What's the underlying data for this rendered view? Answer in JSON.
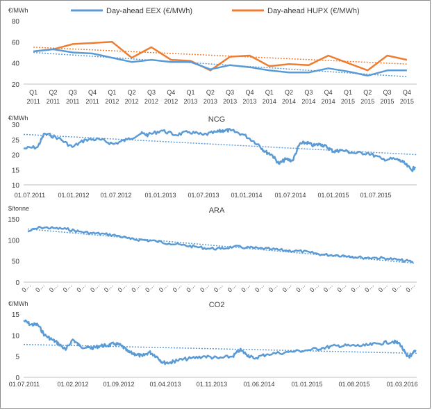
{
  "colors": {
    "eex": "#5b9bd5",
    "hupx": "#ed7d31",
    "axis": "#bfbfbf",
    "text": "#3a3a3a"
  },
  "chart_data": [
    {
      "type": "line",
      "title": "",
      "ylabel": "€/MWh",
      "ylim": [
        20,
        80
      ],
      "yticks": [
        20,
        40,
        60,
        80
      ],
      "grid": false,
      "legend": "top",
      "categories": [
        [
          "Q1",
          "2011"
        ],
        [
          "Q2",
          "2011"
        ],
        [
          "Q3",
          "2011"
        ],
        [
          "Q4",
          "2011"
        ],
        [
          "Q1",
          "2012"
        ],
        [
          "Q2",
          "2012"
        ],
        [
          "Q3",
          "2012"
        ],
        [
          "Q4",
          "2012"
        ],
        [
          "Q1",
          "2013"
        ],
        [
          "Q2",
          "2013"
        ],
        [
          "Q3",
          "2013"
        ],
        [
          "Q4",
          "2013"
        ],
        [
          "Q1",
          "2014"
        ],
        [
          "Q2",
          "2014"
        ],
        [
          "Q3",
          "2014"
        ],
        [
          "Q4",
          "2014"
        ],
        [
          "Q1",
          "2015"
        ],
        [
          "Q2",
          "2015"
        ],
        [
          "Q3",
          "2015"
        ],
        [
          "Q4",
          "2015"
        ]
      ],
      "series": [
        {
          "name": "Day-ahead EEX (€/MWh)",
          "color": "#5b9bd5",
          "values": [
            51,
            53,
            50,
            49,
            45,
            41,
            43,
            41,
            41,
            34,
            38,
            36,
            33,
            31,
            31,
            35,
            32,
            28,
            33,
            33
          ],
          "trend": [
            50,
            27
          ]
        },
        {
          "name": "Day-ahead HUPX (€/MWh)",
          "color": "#ed7d31",
          "values": [
            51,
            53,
            58,
            59,
            60,
            45,
            55,
            43,
            42,
            33,
            46,
            47,
            37,
            39,
            38,
            47,
            40,
            33,
            47,
            43
          ],
          "trend": [
            55,
            39
          ]
        }
      ]
    },
    {
      "type": "line",
      "title": "NCG",
      "ylabel": "€/MWh",
      "ylim": [
        10,
        30
      ],
      "yticks": [
        10,
        15,
        20,
        25,
        30
      ],
      "xlim": [
        "2011-07-01",
        "2016-04-01"
      ],
      "xticks": [
        "01.07.2011",
        "01.01.2012",
        "01.07.2012",
        "01.01.2013",
        "01.07.2013",
        "01.01.2014",
        "01.07.2014",
        "01.01.2015",
        "01.07.2015"
      ],
      "trend": [
        26.7,
        20.0
      ],
      "series": [
        {
          "name": "",
          "color": "#5b9bd5",
          "dates": [
            "2011-07-01",
            "2011-09-01",
            "2011-10-01",
            "2011-12-01",
            "2012-02-01",
            "2012-04-01",
            "2012-06-01",
            "2012-08-01",
            "2012-10-01",
            "2012-12-01",
            "2013-01-01",
            "2013-03-01",
            "2013-05-01",
            "2013-07-01",
            "2013-09-01",
            "2013-11-01",
            "2013-12-01",
            "2014-01-01",
            "2014-03-01",
            "2014-05-01",
            "2014-06-01",
            "2014-07-01",
            "2014-08-01",
            "2014-09-01",
            "2014-10-01",
            "2014-11-01",
            "2014-12-01",
            "2015-01-01",
            "2015-02-01",
            "2015-03-01",
            "2015-04-01",
            "2015-05-01",
            "2015-07-01",
            "2015-09-01",
            "2015-11-01",
            "2016-01-01",
            "2016-02-01",
            "2016-03-10",
            "2016-03-25"
          ],
          "values": [
            22,
            22.5,
            27,
            25.5,
            22.5,
            25,
            25,
            23.5,
            25,
            27,
            26.5,
            28,
            26.5,
            27.5,
            26.5,
            27.5,
            28,
            28,
            26.5,
            23.5,
            21,
            20,
            17,
            18.5,
            18,
            23.5,
            24,
            23,
            23.5,
            22.5,
            21,
            21.5,
            20.5,
            20.5,
            18.5,
            18.5,
            17.5,
            14.8,
            16
          ]
        }
      ]
    },
    {
      "type": "line",
      "title": "ARA",
      "ylabel": "$/tonne",
      "ylim": [
        0,
        150
      ],
      "yticks": [
        0,
        50,
        100,
        150
      ],
      "xtick_labels": [
        "0…",
        "0…",
        "0…",
        "0…",
        "0…",
        "0…",
        "0…",
        "0…",
        "0…",
        "0…",
        "0…",
        "0…",
        "0…",
        "0…",
        "0…",
        "0…",
        "0…",
        "0…",
        "0…",
        "0…",
        "0…",
        "0…",
        "0…",
        "0…",
        "0…",
        "0…",
        "0…",
        "0…",
        "0…"
      ],
      "trend": [
        126,
        45
      ],
      "series": [
        {
          "name": "",
          "color": "#5b9bd5",
          "values": [
            120,
            130,
            128,
            126,
            120,
            116,
            114,
            110,
            102,
            100,
            97,
            92,
            88,
            84,
            80,
            79,
            84,
            82,
            80,
            78,
            75,
            74,
            70,
            65,
            64,
            62,
            58,
            58,
            56,
            52,
            48
          ]
        }
      ]
    },
    {
      "type": "line",
      "title": "CO2",
      "ylabel": "€/MWh",
      "ylim": [
        0,
        15
      ],
      "yticks": [
        0,
        5,
        10,
        15
      ],
      "xlim": [
        "2011-07-01",
        "2016-03-15"
      ],
      "xticks": [
        "01.07.2011",
        "01.02.2012",
        "01.09.2012",
        "01.04.2013",
        "01.11.2013",
        "01.06.2014",
        "01.01.2015",
        "01.08.2015",
        "01.03.2016"
      ],
      "trend": [
        7.8,
        5.7
      ],
      "series": [
        {
          "name": "",
          "color": "#5b9bd5",
          "dates": [
            "2011-07-01",
            "2011-08-01",
            "2011-09-01",
            "2011-10-01",
            "2011-11-01",
            "2011-12-01",
            "2012-01-01",
            "2012-02-01",
            "2012-03-01",
            "2012-04-01",
            "2012-05-01",
            "2012-06-01",
            "2012-07-01",
            "2012-08-01",
            "2012-09-01",
            "2012-10-01",
            "2012-11-01",
            "2012-12-01",
            "2013-01-01",
            "2013-02-01",
            "2013-03-01",
            "2013-04-01",
            "2013-05-01",
            "2013-07-01",
            "2013-09-01",
            "2013-11-01",
            "2014-01-01",
            "2014-02-01",
            "2014-03-01",
            "2014-04-01",
            "2014-06-01",
            "2014-09-01",
            "2014-12-01",
            "2015-02-01",
            "2015-04-01",
            "2015-06-01",
            "2015-08-01",
            "2015-10-01",
            "2015-12-01",
            "2016-01-01",
            "2016-02-01",
            "2016-02-20",
            "2016-03-10"
          ],
          "values": [
            13.5,
            12.5,
            12.5,
            10,
            9,
            8,
            6.5,
            9,
            7.5,
            7,
            7,
            7.5,
            7.5,
            8,
            7.5,
            6,
            5.5,
            5,
            6,
            5,
            3.5,
            3.5,
            4,
            4.5,
            5,
            4.5,
            5,
            6.5,
            5.5,
            4.5,
            5.5,
            6,
            6.5,
            7,
            7.5,
            7.5,
            7.5,
            8,
            8.5,
            8,
            5,
            5,
            6.5
          ]
        }
      ]
    }
  ]
}
